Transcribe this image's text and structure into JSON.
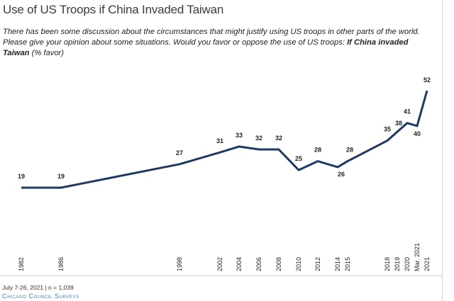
{
  "header": {
    "title": "Use of US Troops if China Invaded Taiwan",
    "question": "There has been some discussion about the circumstances that might justify using US troops in other parts of the world. Please give your opinion about some situations. Would you favor or oppose the use of US troops:",
    "question_emphasis": "If China invaded Taiwan",
    "question_suffix": "(% favor)"
  },
  "footer": {
    "note": "July 7-26, 2021 | n = 1,039",
    "brand": "Chicago Council Surveys"
  },
  "colors": {
    "line": "#1f3864",
    "text": "#222222"
  },
  "chart_data": {
    "type": "line",
    "title": "Use of US Troops if China Invaded Taiwan",
    "xlabel": "",
    "ylabel": "% favor",
    "ylim": [
      0,
      60
    ],
    "grid": false,
    "legend": "none",
    "series": [
      {
        "values": [
          {
            "x": "1982",
            "y": 19
          },
          {
            "x": "1986",
            "y": 19
          },
          {
            "x": "1998",
            "y": 27
          },
          {
            "x": "2002",
            "y": 31
          },
          {
            "x": "2004",
            "y": 33
          },
          {
            "x": "2006",
            "y": 32
          },
          {
            "x": "2008",
            "y": 32
          },
          {
            "x": "2010",
            "y": 25
          },
          {
            "x": "2012",
            "y": 28
          },
          {
            "x": "2014",
            "y": 26
          },
          {
            "x": "2015",
            "y": 28
          },
          {
            "x": "2018",
            "y": 35
          },
          {
            "x": "2019",
            "y": 38
          },
          {
            "x": "2020",
            "y": 41
          },
          {
            "x": "Mar. 2021",
            "y": 40
          },
          {
            "x": "2021",
            "y": 52
          }
        ]
      }
    ]
  }
}
